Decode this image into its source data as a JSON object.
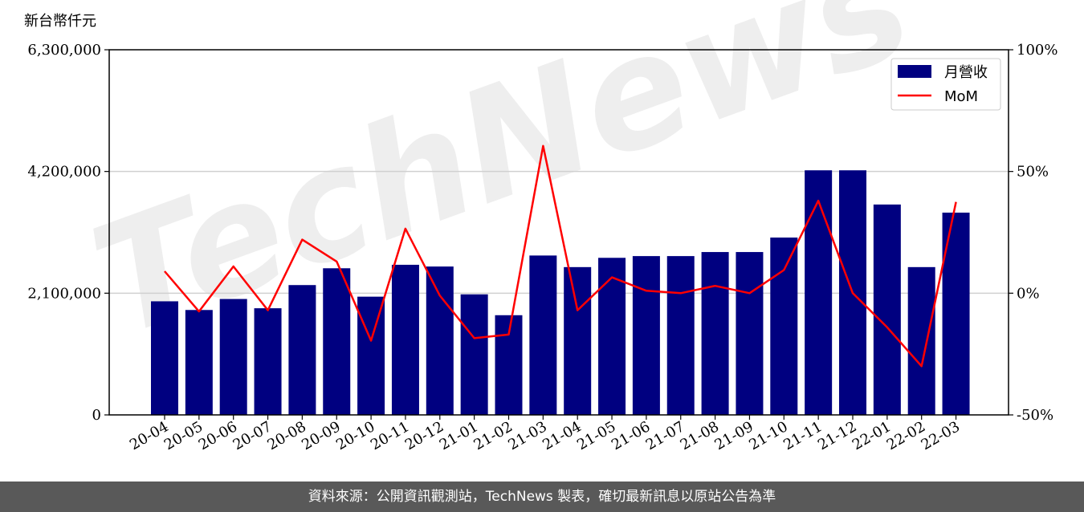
{
  "chart_data": {
    "type": "bar",
    "y_unit": "新台幣仟元",
    "categories": [
      "20-04",
      "20-05",
      "20-06",
      "20-07",
      "20-08",
      "20-09",
      "20-10",
      "20-11",
      "20-12",
      "21-01",
      "21-02",
      "21-03",
      "21-04",
      "21-05",
      "21-06",
      "21-07",
      "21-08",
      "21-09",
      "21-10",
      "21-11",
      "21-12",
      "22-01",
      "22-02",
      "22-03"
    ],
    "series": [
      {
        "name": "月營收",
        "axis": "left",
        "type": "bar",
        "color": "#000080",
        "values": [
          1960000,
          1810000,
          2000000,
          1840000,
          2240000,
          2530000,
          2040000,
          2590000,
          2560000,
          2080000,
          1720000,
          2750000,
          2550000,
          2710000,
          2740000,
          2740000,
          2810000,
          2810000,
          3060000,
          4220000,
          4220000,
          3630000,
          2550000,
          3490000
        ]
      },
      {
        "name": "MoM",
        "axis": "right",
        "type": "line",
        "color": "#ff0000",
        "values": [
          9,
          -7.5,
          11,
          -7,
          22,
          13,
          -19.5,
          26.5,
          -1,
          -18.5,
          -17,
          60.5,
          -7,
          6.5,
          1,
          0,
          3,
          0,
          9.5,
          38,
          0,
          -14,
          -30,
          37.5
        ]
      }
    ],
    "y_left": {
      "min": 0,
      "max": 6300000,
      "ticks": [
        "0",
        "2,100,000",
        "4,200,000",
        "6,300,000"
      ],
      "tick_values": [
        0,
        2100000,
        4200000,
        6300000
      ]
    },
    "y_right": {
      "min": -50,
      "max": 100,
      "ticks": [
        "-50%",
        "0%",
        "50%",
        "100%"
      ],
      "tick_values": [
        -50,
        0,
        50,
        100
      ]
    },
    "grid": "horizontal",
    "legend_position": "top-right",
    "watermark": "TechNews"
  },
  "footer": {
    "text": "資料來源：公開資訊觀測站，TechNews 製表，確切最新訊息以原站公告為準"
  }
}
